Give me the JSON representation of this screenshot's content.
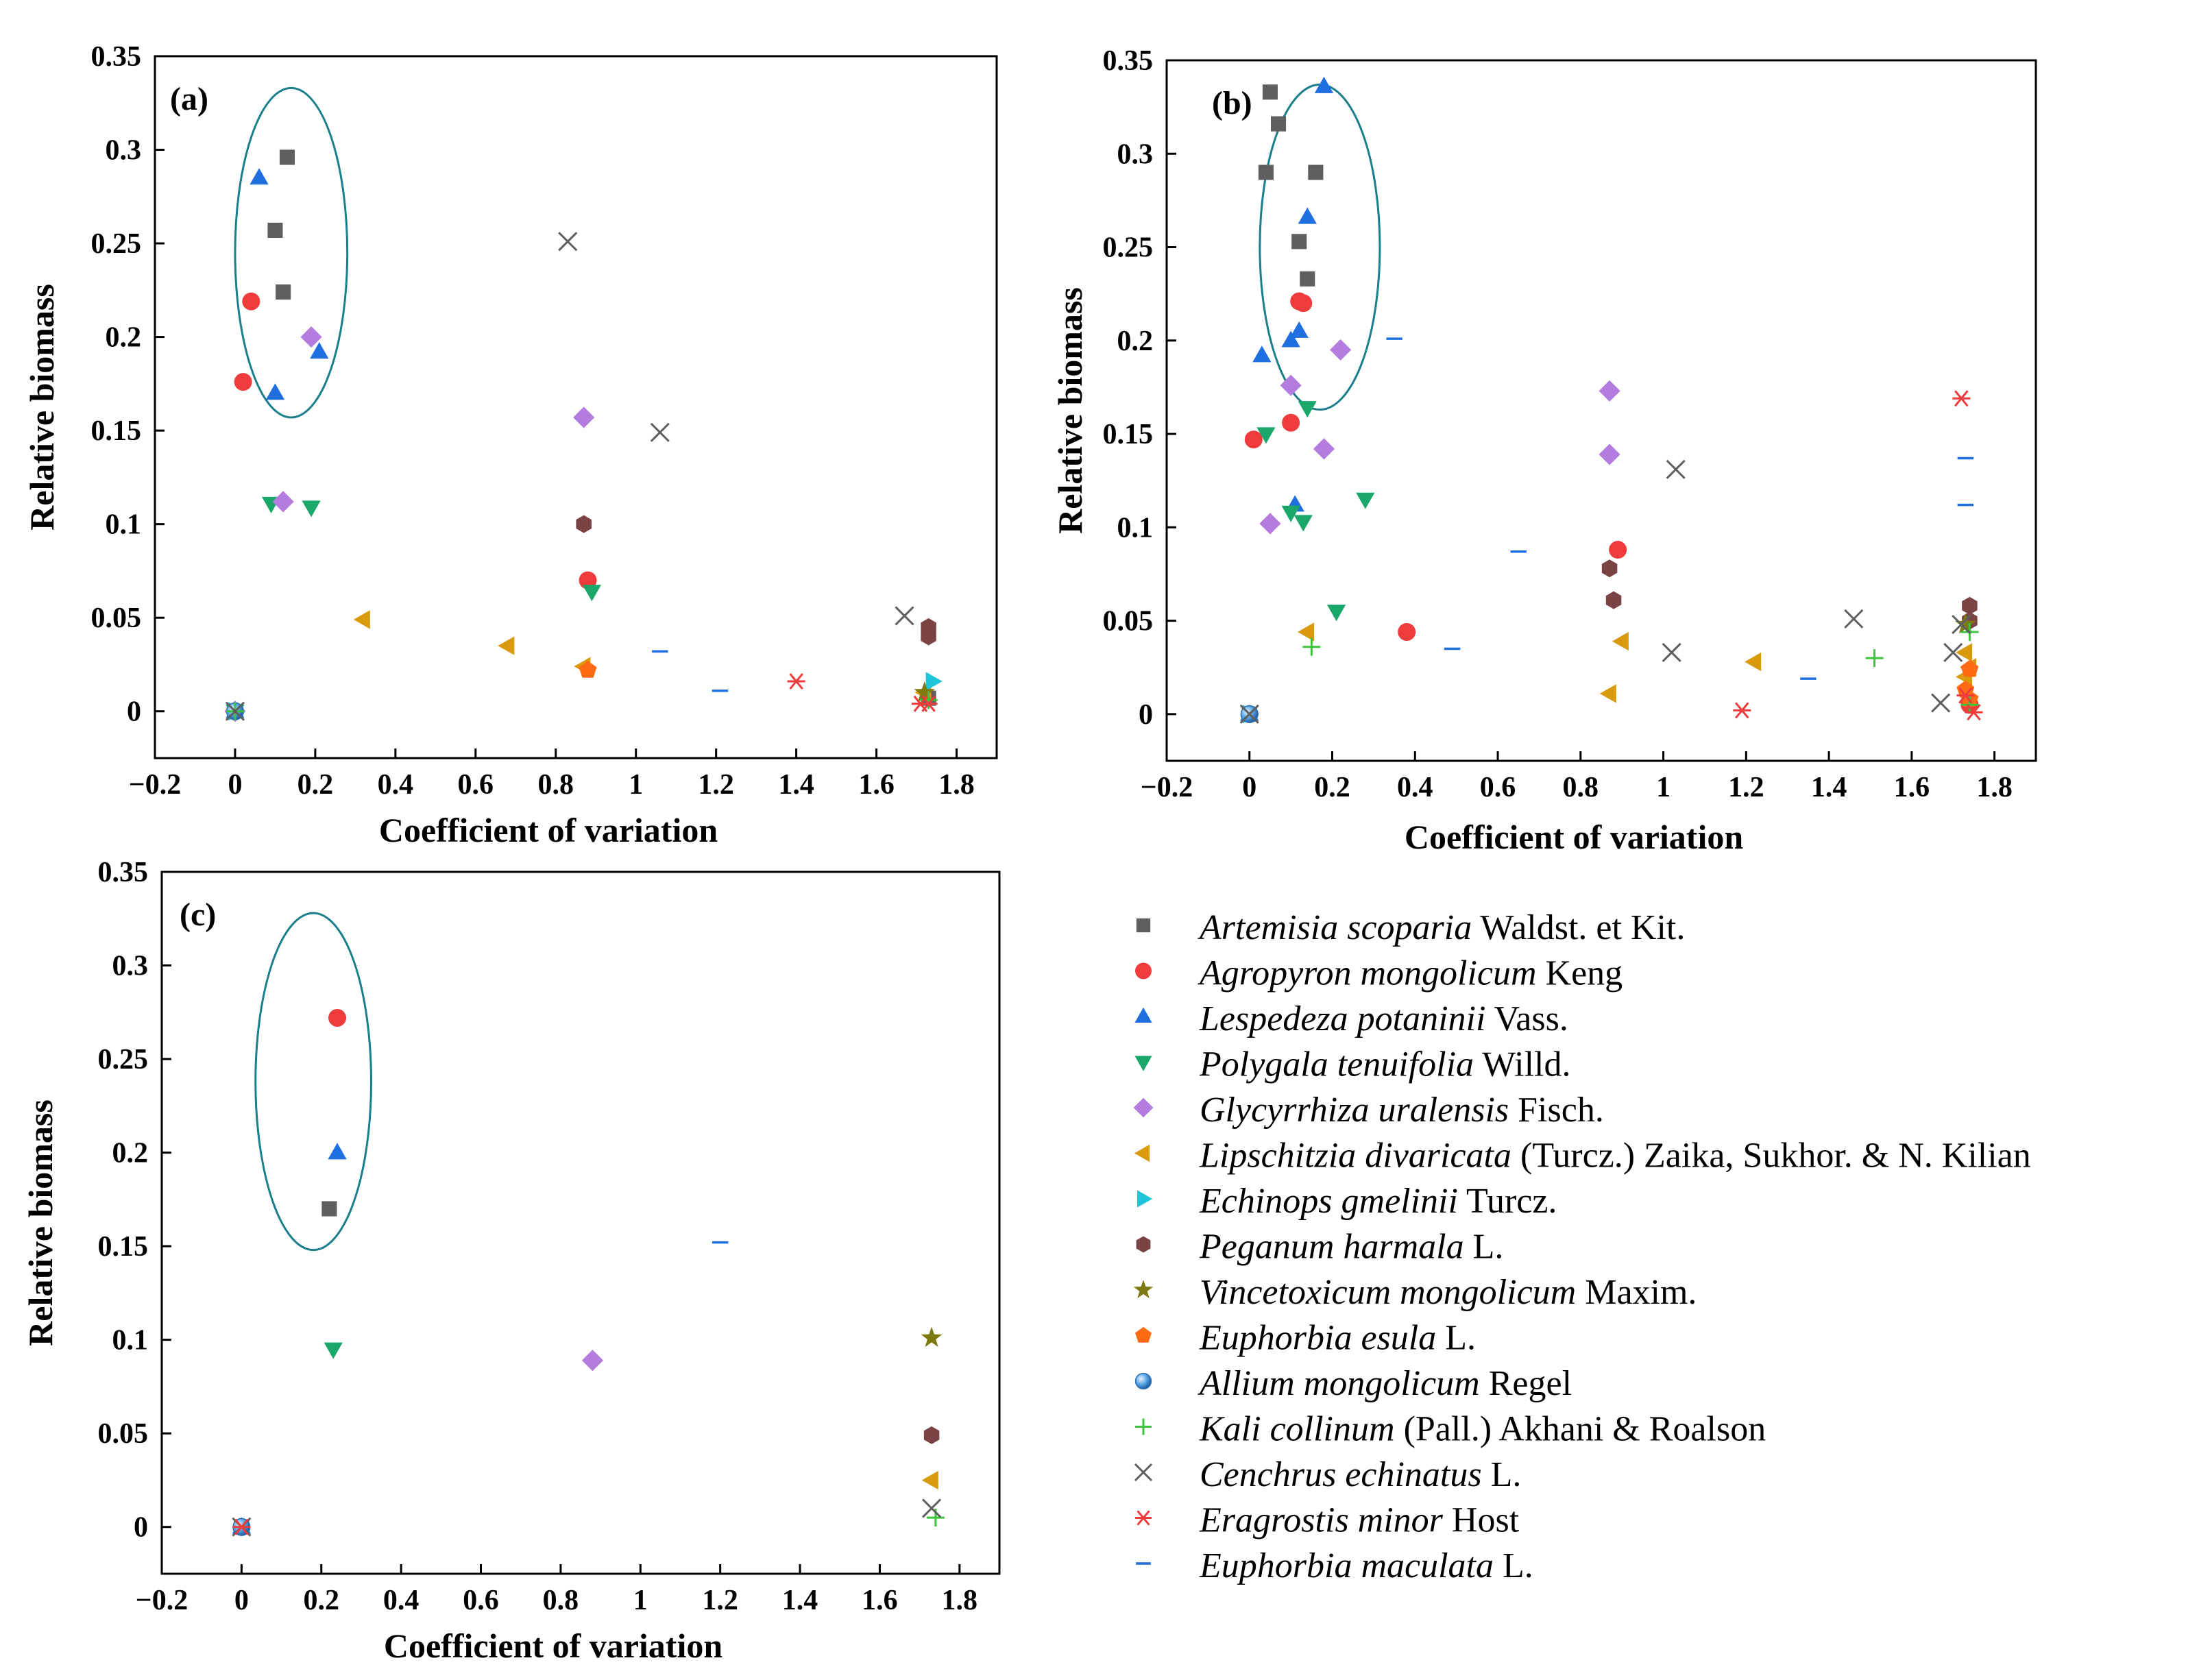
{
  "chart_data": [
    {
      "type": "scatter",
      "panel_label": "(a)",
      "xlabel": "Coefficient of variation",
      "ylabel": "Relative biomass",
      "xlim": [
        -0.2,
        1.9
      ],
      "ylim": [
        -0.025,
        0.35
      ],
      "x_ticks": [
        -0.2,
        0,
        0.2,
        0.4,
        0.6,
        0.8,
        1.0,
        1.2,
        1.4,
        1.6,
        1.8
      ],
      "x_tick_labels": [
        "−0.2",
        "0",
        "0.2",
        "0.4",
        "0.6",
        "0.8",
        "1",
        "1.2",
        "1.4",
        "1.6",
        "1.8"
      ],
      "y_ticks": [
        0,
        0.05,
        0.1,
        0.15,
        0.2,
        0.25,
        0.3,
        0.35
      ],
      "y_tick_labels": [
        "0",
        "0.05",
        "0.1",
        "0.15",
        "0.2",
        "0.25",
        "0.3",
        "0.35"
      ],
      "ellipse": {
        "cx": 0.14,
        "cy": 0.245,
        "rx": 0.14,
        "ry": 0.088
      },
      "series": [
        {
          "name": "Artemisia scoparia",
          "points": [
            [
              0.13,
              0.296
            ],
            [
              0.1,
              0.257
            ],
            [
              0.12,
              0.224
            ],
            [
              1.73,
              0.007
            ]
          ]
        },
        {
          "name": "Agropyron mongolicum",
          "points": [
            [
              0.04,
              0.219
            ],
            [
              0.02,
              0.176
            ],
            [
              0.88,
              0.07
            ],
            [
              0,
              0
            ]
          ]
        },
        {
          "name": "Lespedeza potaninii",
          "points": [
            [
              0.06,
              0.285
            ],
            [
              0.21,
              0.192
            ],
            [
              0.1,
              0.17
            ],
            [
              0,
              0
            ]
          ]
        },
        {
          "name": "Polygala tenuifolia",
          "points": [
            [
              0.09,
              0.111
            ],
            [
              0.19,
              0.109
            ],
            [
              0.89,
              0.064
            ],
            [
              0,
              0
            ]
          ]
        },
        {
          "name": "Glycyrrhiza uralensis",
          "points": [
            [
              0.19,
              0.2
            ],
            [
              0.87,
              0.157
            ],
            [
              0.12,
              0.112
            ],
            [
              0,
              0
            ]
          ]
        },
        {
          "name": "Lipschitzia divaricata",
          "points": [
            [
              0.32,
              0.049
            ],
            [
              0.68,
              0.035
            ],
            [
              0.87,
              0.024
            ],
            [
              1.72,
              0.01
            ]
          ]
        },
        {
          "name": "Echinops gmelinii",
          "points": [
            [
              1.74,
              0.016
            ],
            [
              0,
              0
            ]
          ]
        },
        {
          "name": "Peganum harmala",
          "points": [
            [
              0.87,
              0.1
            ],
            [
              1.73,
              0.045
            ],
            [
              1.73,
              0.04
            ]
          ]
        },
        {
          "name": "Vincetoxicum mongolicum",
          "points": [
            [
              1.72,
              0.01
            ]
          ]
        },
        {
          "name": "Euphorbia esula",
          "points": [
            [
              0.88,
              0.022
            ]
          ]
        },
        {
          "name": "Allium mongolicum",
          "points": [
            [
              0,
              0
            ]
          ]
        },
        {
          "name": "Kali collinum",
          "points": [
            [
              1.73,
              0.006
            ],
            [
              0,
              0
            ]
          ]
        },
        {
          "name": "Cenchrus echinatus",
          "points": [
            [
              0.83,
              0.251
            ],
            [
              1.06,
              0.149
            ],
            [
              1.67,
              0.051
            ],
            [
              0,
              0
            ]
          ]
        },
        {
          "name": "Eragrostis minor",
          "points": [
            [
              1.4,
              0.016
            ],
            [
              1.71,
              0.004
            ],
            [
              1.73,
              0.004
            ]
          ]
        },
        {
          "name": "Euphorbia maculata",
          "points": [
            [
              1.06,
              0.032
            ],
            [
              1.21,
              0.011
            ]
          ]
        }
      ]
    },
    {
      "type": "scatter",
      "panel_label": "(b)",
      "xlabel": "Coefficient of variation",
      "ylabel": "Relative biomass",
      "xlim": [
        -0.2,
        1.9
      ],
      "ylim": [
        -0.025,
        0.35
      ],
      "x_ticks": [
        -0.2,
        0,
        0.2,
        0.4,
        0.6,
        0.8,
        1.0,
        1.2,
        1.4,
        1.6,
        1.8
      ],
      "x_tick_labels": [
        "−0.2",
        "0",
        "0.2",
        "0.4",
        "0.6",
        "0.8",
        "1",
        "1.2",
        "1.4",
        "1.6",
        "1.8"
      ],
      "y_ticks": [
        0,
        0.05,
        0.1,
        0.15,
        0.2,
        0.25,
        0.3,
        0.35
      ],
      "y_tick_labels": [
        "0",
        "0.05",
        "0.1",
        "0.15",
        "0.2",
        "0.25",
        "0.3",
        "0.35"
      ],
      "ellipse": {
        "cx": 0.17,
        "cy": 0.25,
        "rx": 0.145,
        "ry": 0.087
      },
      "series": [
        {
          "name": "Artemisia scoparia",
          "points": [
            [
              0.05,
              0.333
            ],
            [
              0.07,
              0.316
            ],
            [
              0.04,
              0.29
            ],
            [
              0.16,
              0.29
            ],
            [
              0.12,
              0.253
            ],
            [
              0.14,
              0.233
            ],
            [
              0,
              0
            ]
          ]
        },
        {
          "name": "Agropyron mongolicum",
          "points": [
            [
              0.12,
              0.221
            ],
            [
              0.13,
              0.22
            ],
            [
              0.1,
              0.156
            ],
            [
              0.01,
              0.147
            ],
            [
              0.89,
              0.088
            ],
            [
              0.38,
              0.044
            ],
            [
              1.74,
              0.005
            ]
          ]
        },
        {
          "name": "Lespedeza potaninii",
          "points": [
            [
              0.18,
              0.336
            ],
            [
              0.14,
              0.266
            ],
            [
              0.12,
              0.205
            ],
            [
              0.1,
              0.2
            ],
            [
              0.03,
              0.192
            ],
            [
              0.11,
              0.112
            ],
            [
              0,
              0
            ]
          ]
        },
        {
          "name": "Polygala tenuifolia",
          "points": [
            [
              0.14,
              0.164
            ],
            [
              0.04,
              0.15
            ],
            [
              0.28,
              0.115
            ],
            [
              0.1,
              0.108
            ],
            [
              0.13,
              0.103
            ],
            [
              0.21,
              0.055
            ]
          ]
        },
        {
          "name": "Glycyrrhiza uralensis",
          "points": [
            [
              0.22,
              0.195
            ],
            [
              0.1,
              0.176
            ],
            [
              0.87,
              0.173
            ],
            [
              0.18,
              0.142
            ],
            [
              0.87,
              0.139
            ],
            [
              0.05,
              0.102
            ]
          ]
        },
        {
          "name": "Lipschitzia divaricata",
          "points": [
            [
              0.14,
              0.044
            ],
            [
              0.9,
              0.039
            ],
            [
              0.87,
              0.011
            ],
            [
              1.22,
              0.028
            ],
            [
              1.73,
              0.033
            ],
            [
              1.74,
              0.025
            ],
            [
              1.73,
              0.02
            ]
          ]
        },
        {
          "name": "Echinops gmelinii",
          "points": [
            [
              0,
              0
            ]
          ]
        },
        {
          "name": "Peganum harmala",
          "points": [
            [
              0.87,
              0.078
            ],
            [
              0.88,
              0.061
            ],
            [
              1.74,
              0.058
            ],
            [
              1.74,
              0.05
            ]
          ]
        },
        {
          "name": "Vincetoxicum mongolicum",
          "points": [
            [
              1.73,
              0.048
            ]
          ]
        },
        {
          "name": "Euphorbia esula",
          "points": [
            [
              1.74,
              0.024
            ],
            [
              1.73,
              0.013
            ],
            [
              1.74,
              0.008
            ]
          ]
        },
        {
          "name": "Allium mongolicum",
          "points": [
            [
              0,
              0
            ]
          ]
        },
        {
          "name": "Kali collinum",
          "points": [
            [
              0.15,
              0.036
            ],
            [
              1.51,
              0.03
            ],
            [
              1.74,
              0.044
            ],
            [
              1.74,
              0.005
            ]
          ]
        },
        {
          "name": "Cenchrus echinatus",
          "points": [
            [
              1.03,
              0.131
            ],
            [
              1.46,
              0.051
            ],
            [
              1.02,
              0.033
            ],
            [
              1.72,
              0.048
            ],
            [
              1.7,
              0.033
            ],
            [
              1.67,
              0.006
            ],
            [
              0,
              0
            ]
          ]
        },
        {
          "name": "Eragrostis minor",
          "points": [
            [
              1.72,
              0.169
            ],
            [
              1.19,
              0.002
            ],
            [
              1.73,
              0.01
            ],
            [
              1.75,
              0.001
            ]
          ]
        },
        {
          "name": "Euphorbia maculata",
          "points": [
            [
              0.35,
              0.201
            ],
            [
              1.73,
              0.137
            ],
            [
              1.73,
              0.112
            ],
            [
              0.65,
              0.087
            ],
            [
              0.49,
              0.035
            ],
            [
              1.35,
              0.019
            ]
          ]
        }
      ]
    },
    {
      "type": "scatter",
      "panel_label": "(c)",
      "xlabel": "Coefficient of variation",
      "ylabel": "Relative biomass",
      "xlim": [
        -0.2,
        1.9
      ],
      "ylim": [
        -0.025,
        0.35
      ],
      "x_ticks": [
        -0.2,
        0,
        0.2,
        0.4,
        0.6,
        0.8,
        1.0,
        1.2,
        1.4,
        1.6,
        1.8
      ],
      "x_tick_labels": [
        "−0.2",
        "0",
        "0.2",
        "0.4",
        "0.6",
        "0.8",
        "1",
        "1.2",
        "1.4",
        "1.6",
        "1.8"
      ],
      "y_ticks": [
        0,
        0.05,
        0.1,
        0.15,
        0.2,
        0.25,
        0.3,
        0.35
      ],
      "y_tick_labels": [
        "0",
        "0.05",
        "0.1",
        "0.15",
        "0.2",
        "0.25",
        "0.3",
        "0.35"
      ],
      "ellipse": {
        "cx": 0.18,
        "cy": 0.238,
        "rx": 0.145,
        "ry": 0.09
      },
      "series": [
        {
          "name": "Artemisia scoparia",
          "points": [
            [
              0.22,
              0.17
            ],
            [
              0,
              0
            ]
          ]
        },
        {
          "name": "Agropyron mongolicum",
          "points": [
            [
              0.24,
              0.272
            ],
            [
              0,
              0
            ]
          ]
        },
        {
          "name": "Lespedeza potaninii",
          "points": [
            [
              0.24,
              0.2
            ],
            [
              0,
              0
            ]
          ]
        },
        {
          "name": "Polygala tenuifolia",
          "points": [
            [
              0.23,
              0.095
            ]
          ]
        },
        {
          "name": "Glycyrrhiza uralensis",
          "points": [
            [
              0.88,
              0.089
            ]
          ]
        },
        {
          "name": "Lipschitzia divaricata",
          "points": [
            [
              1.73,
              0.025
            ]
          ]
        },
        {
          "name": "Echinops gmelinii",
          "points": []
        },
        {
          "name": "Peganum harmala",
          "points": [
            [
              1.73,
              0.049
            ]
          ]
        },
        {
          "name": "Vincetoxicum mongolicum",
          "points": [
            [
              1.73,
              0.101
            ]
          ]
        },
        {
          "name": "Euphorbia esula",
          "points": []
        },
        {
          "name": "Allium mongolicum",
          "points": [
            [
              0,
              0
            ]
          ]
        },
        {
          "name": "Kali collinum",
          "points": [
            [
              1.74,
              0.005
            ]
          ]
        },
        {
          "name": "Cenchrus echinatus",
          "points": [
            [
              1.73,
              0.01
            ],
            [
              0,
              0
            ]
          ]
        },
        {
          "name": "Eragrostis minor",
          "points": [
            [
              0,
              0
            ]
          ]
        },
        {
          "name": "Euphorbia maculata",
          "points": [
            [
              1.2,
              0.152
            ]
          ]
        }
      ]
    }
  ],
  "legend": [
    {
      "key": "Artemisia scoparia",
      "italic": "Artemisia scoparia",
      "rest": " Waldst. et Kit.",
      "marker": "square",
      "color": "#5f5f5f"
    },
    {
      "key": "Agropyron mongolicum",
      "italic": "Agropyron mongolicum",
      "rest": " Keng",
      "marker": "circle",
      "color": "#ef3b3b"
    },
    {
      "key": "Lespedeza potaninii",
      "italic": "Lespedeza potaninii",
      "rest": " Vass.",
      "marker": "triangle-up",
      "color": "#1f6fe0"
    },
    {
      "key": "Polygala tenuifolia",
      "italic": "Polygala tenuifolia",
      "rest": " Willd.",
      "marker": "triangle-down",
      "color": "#19a86a"
    },
    {
      "key": "Glycyrrhiza uralensis",
      "italic": "Glycyrrhiza uralensis",
      "rest": " Fisch.",
      "marker": "diamond",
      "color": "#b57ce0"
    },
    {
      "key": "Lipschitzia divaricata",
      "italic": "Lipschitzia divaricata",
      "rest": " (Turcz.) Zaika, Sukhor. & N. Kilian",
      "marker": "triangle-left",
      "color": "#d99a0e"
    },
    {
      "key": "Echinops gmelinii",
      "italic": "Echinops gmelinii",
      "rest": " Turcz.",
      "marker": "triangle-right",
      "color": "#1ec4d8"
    },
    {
      "key": "Peganum harmala",
      "italic": "Peganum harmala",
      "rest": " L.",
      "marker": "hexagon",
      "color": "#7a4444"
    },
    {
      "key": "Vincetoxicum mongolicum",
      "italic": "Vincetoxicum mongolicum",
      "rest": " Maxim.",
      "marker": "star",
      "color": "#7d7a12"
    },
    {
      "key": "Euphorbia esula",
      "italic": "Euphorbia esula",
      "rest": " L.",
      "marker": "pentagon",
      "color": "#ff6a12"
    },
    {
      "key": "Allium mongolicum",
      "italic": "Allium mongolicum",
      "rest": " Regel",
      "marker": "sphere",
      "color": "#3a8fd6"
    },
    {
      "key": "Kali collinum",
      "italic": "Kali collinum",
      "rest": " (Pall.) Akhani & Roalson",
      "marker": "plus",
      "color": "#3cc43c"
    },
    {
      "key": "Cenchrus echinatus",
      "italic": "Cenchrus echinatus",
      "rest": " L.",
      "marker": "cross",
      "color": "#5f5f5f"
    },
    {
      "key": "Eragrostis minor",
      "italic": "Eragrostis minor",
      "rest": " Host",
      "marker": "asterisk",
      "color": "#ef3b3b"
    },
    {
      "key": "Euphorbia maculata",
      "italic": "Euphorbia maculata",
      "rest": " L.",
      "marker": "dash",
      "color": "#1f6fe0"
    }
  ],
  "colors": {
    "ellipse": "#1a7f8c",
    "axis": "#000000"
  }
}
